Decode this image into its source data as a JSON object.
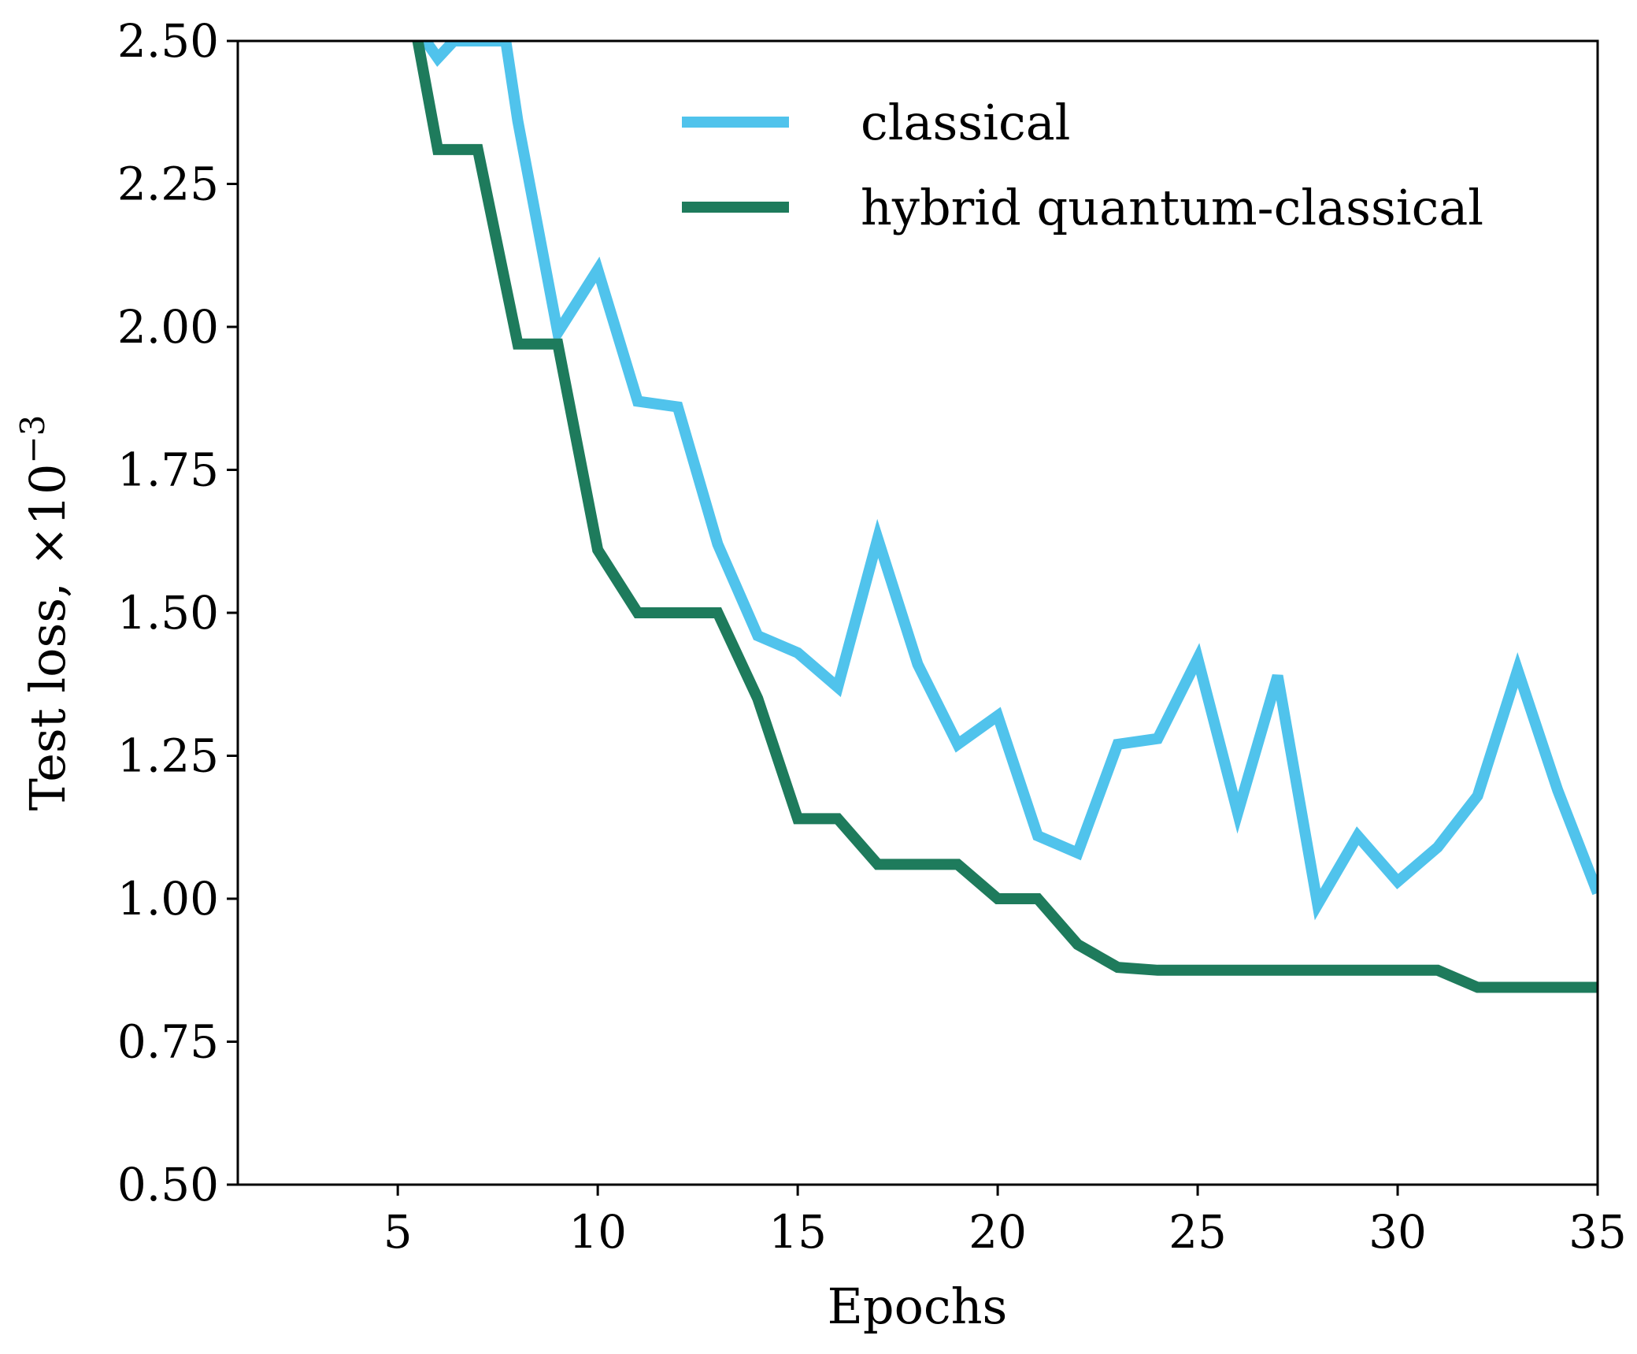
{
  "chart_data": {
    "type": "line",
    "title": "",
    "xlabel": "Epochs",
    "ylabel": "Test loss, ×10",
    "ylabel_exponent": "−3",
    "xlim": [
      1,
      35
    ],
    "ylim": [
      0.5,
      2.5
    ],
    "xticks": [
      5,
      10,
      15,
      20,
      25,
      30,
      35
    ],
    "xtick_labels": [
      "5",
      "10",
      "15",
      "20",
      "25",
      "30",
      "35"
    ],
    "yticks": [
      0.5,
      0.75,
      1.0,
      1.25,
      1.5,
      1.75,
      2.0,
      2.25,
      2.5
    ],
    "ytick_labels": [
      "0.50",
      "0.75",
      "1.00",
      "1.25",
      "1.50",
      "1.75",
      "2.00",
      "2.25",
      "2.50"
    ],
    "grid": false,
    "legend_position": "top-right",
    "series": [
      {
        "name": "classical",
        "color": "#50C3EC",
        "x": [
          5.7,
          6,
          6.4,
          7.7,
          8,
          9,
          10,
          11,
          12,
          13,
          14,
          15,
          16,
          17,
          18,
          19,
          20,
          21,
          22,
          23,
          24,
          25,
          26,
          27,
          28,
          29,
          30,
          31,
          32,
          33,
          34,
          35
        ],
        "y": [
          2.5,
          2.47,
          2.5,
          2.5,
          2.36,
          1.99,
          2.1,
          1.87,
          1.86,
          1.62,
          1.46,
          1.43,
          1.37,
          1.63,
          1.41,
          1.27,
          1.32,
          1.11,
          1.08,
          1.27,
          1.28,
          1.42,
          1.15,
          1.39,
          0.99,
          1.11,
          1.03,
          1.09,
          1.18,
          1.4,
          1.19,
          1.01
        ]
      },
      {
        "name": "hybrid quantum-classical",
        "color": "#1E7B5C",
        "x": [
          5.5,
          6,
          7,
          8,
          9,
          10,
          11,
          12,
          13,
          14,
          15,
          16,
          17,
          18,
          19,
          20,
          21,
          22,
          23,
          24,
          25,
          26,
          27,
          28,
          29,
          30,
          31,
          32,
          33,
          34,
          35
        ],
        "y": [
          2.5,
          2.31,
          2.31,
          1.97,
          1.97,
          1.61,
          1.5,
          1.5,
          1.5,
          1.35,
          1.14,
          1.14,
          1.06,
          1.06,
          1.06,
          1.0,
          1.0,
          0.92,
          0.88,
          0.875,
          0.875,
          0.875,
          0.875,
          0.875,
          0.875,
          0.875,
          0.875,
          0.845,
          0.845,
          0.845,
          0.845
        ]
      }
    ]
  }
}
